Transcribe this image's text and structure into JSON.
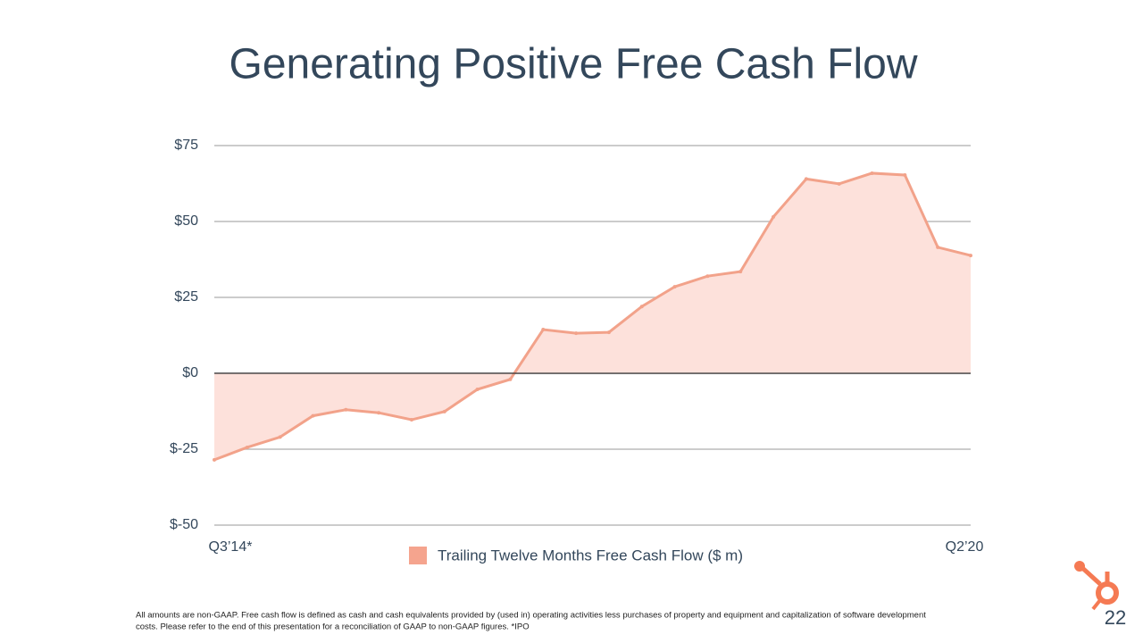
{
  "chart_data": {
    "type": "area",
    "title": "Generating Positive Free Cash Flow",
    "categories": [
      "Q3’14*",
      null,
      null,
      null,
      null,
      null,
      null,
      null,
      null,
      null,
      null,
      null,
      null,
      null,
      null,
      null,
      null,
      null,
      null,
      null,
      null,
      null,
      null,
      "Q2’20"
    ],
    "series": [
      {
        "name": "Trailing Twelve Months Free Cash Flow ($ m)",
        "color": "#f2a28a",
        "values": [
          -28.5,
          -24.4,
          -21,
          -14,
          -12,
          -13,
          -15.3,
          -12.6,
          -5.3,
          -2,
          14.4,
          13.2,
          13.5,
          22,
          28.5,
          32,
          33.5,
          51.5,
          64,
          62.4,
          65.9,
          65.3,
          41.5,
          38.8
        ]
      }
    ],
    "area_color": "#fde1db",
    "legend_color": "#f5a48e",
    "ylim": [
      -50,
      75
    ],
    "yticks": [
      {
        "value": -50,
        "label": "$-50"
      },
      {
        "value": -25,
        "label": "$-25"
      },
      {
        "value": 0,
        "label": "$0"
      },
      {
        "value": 25,
        "label": "$25"
      },
      {
        "value": 50,
        "label": "$50"
      },
      {
        "value": 75,
        "label": "$75"
      }
    ],
    "grid": true
  },
  "footer": {
    "note": [
      "All amounts are non-GAAP. Free cash flow is defined as cash and cash equivalents provided by (used in) operating activities less purchases of property and equipment and capitalization of software development",
      "costs.  Please refer to the end of this presentation for a reconciliation of GAAP to non-GAAP figures. *IPO"
    ],
    "page_number": "22"
  }
}
